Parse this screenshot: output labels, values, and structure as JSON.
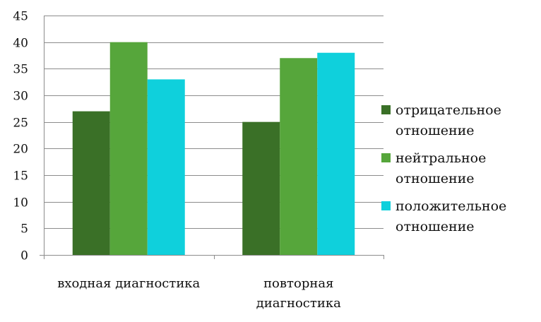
{
  "chart_data": {
    "type": "bar",
    "title": "",
    "xlabel": "",
    "ylabel": "",
    "ylim": [
      0,
      45
    ],
    "yticks": [
      0,
      5,
      10,
      15,
      20,
      25,
      30,
      35,
      40,
      45
    ],
    "grid": true,
    "legend_position": "right",
    "categories": [
      [
        "входная диагностика"
      ],
      [
        "повторная",
        "диагностика"
      ]
    ],
    "series": [
      {
        "name": [
          "отрицательное",
          "отношение"
        ],
        "values": [
          27,
          25
        ],
        "color": "#3a7027"
      },
      {
        "name": [
          "нейтральное",
          "отношение"
        ],
        "values": [
          40,
          37
        ],
        "color": "#56a63b"
      },
      {
        "name": [
          "положительное",
          "отношение"
        ],
        "values": [
          33,
          38
        ],
        "color": "#0fd0dc"
      }
    ]
  }
}
